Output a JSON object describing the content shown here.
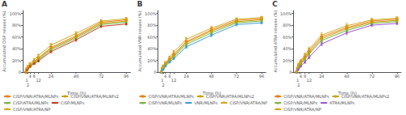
{
  "chart_data": [
    {
      "type": "line",
      "title": "A",
      "x_label": "Time (h)",
      "y_label": "Accumulated CISP release (%)",
      "x": [
        0,
        1,
        2,
        4,
        8,
        12,
        24,
        48,
        72,
        96
      ],
      "xlim": [
        -3,
        100
      ],
      "xticks": [
        0,
        1,
        2,
        4,
        8,
        12,
        24,
        48,
        72,
        96
      ],
      "ylim": [
        0,
        105
      ],
      "yticks": [
        0,
        {
          "value": 20,
          "label": "20%"
        },
        {
          "value": 40,
          "label": "40%"
        },
        {
          "value": 60,
          "label": "60%"
        },
        {
          "value": 80,
          "label": "80%"
        },
        {
          "value": 100,
          "label": "100%"
        }
      ],
      "grid": false,
      "legend": "bottom",
      "series": [
        {
          "name": "CISP/VNR/ATRA/MLNPs",
          "color": "#E8821A",
          "marker": "square",
          "values": [
            0,
            5,
            8,
            12,
            18,
            24,
            42,
            62,
            85,
            89
          ],
          "yerr": [
            0,
            1.0,
            1.2,
            1.5,
            2.0,
            2.2,
            2.8,
            3.0,
            2.5,
            2.0
          ]
        },
        {
          "name": "CISP/VNR/ATRA/MLNPs2",
          "color": "#C8A000",
          "marker": "circle",
          "values": [
            0,
            4.5,
            7.5,
            11,
            17,
            23,
            40,
            60,
            83,
            87
          ],
          "yerr": [
            0,
            0.9,
            1.1,
            1.4,
            1.8,
            2.0,
            2.5,
            2.8,
            2.3,
            1.8
          ]
        },
        {
          "name": "CISP/ATRA/MLNPs",
          "color": "#7DB343",
          "marker": "triangle",
          "values": [
            0,
            4,
            7,
            10,
            16,
            21,
            38,
            58,
            81,
            85
          ],
          "yerr": [
            0,
            0.8,
            1.0,
            1.3,
            1.6,
            1.8,
            2.3,
            2.6,
            2.2,
            1.7
          ]
        },
        {
          "name": "CISP/MLNPs",
          "color": "#C04020",
          "marker": "diamond",
          "values": [
            0,
            3.5,
            6.5,
            9.5,
            14.5,
            19,
            35,
            55,
            78,
            82
          ],
          "yerr": [
            0,
            0.7,
            0.9,
            1.2,
            1.5,
            1.7,
            2.2,
            2.5,
            2.0,
            1.6
          ]
        },
        {
          "name": "CISP/VNR/ATRA/NP",
          "color": "#D4A820",
          "marker": "triangle-down",
          "values": [
            0,
            6,
            9.5,
            14,
            21,
            28,
            46,
            66,
            87,
            91
          ],
          "yerr": [
            0,
            1.2,
            1.4,
            1.7,
            2.2,
            2.5,
            3.0,
            3.2,
            2.6,
            2.2
          ]
        }
      ]
    },
    {
      "type": "line",
      "title": "B",
      "x_label": "Time (h)",
      "y_label": "Accumulated VNR release (%)",
      "x": [
        0,
        1,
        2,
        4,
        8,
        12,
        24,
        48,
        72,
        96
      ],
      "xlim": [
        -3,
        100
      ],
      "xticks": [
        0,
        1,
        2,
        4,
        8,
        12,
        24,
        48,
        72,
        96
      ],
      "ylim": [
        0,
        105
      ],
      "yticks": [
        0,
        {
          "value": 20,
          "label": "20%"
        },
        {
          "value": 40,
          "label": "40%"
        },
        {
          "value": 60,
          "label": "60%"
        },
        {
          "value": 80,
          "label": "80%"
        },
        {
          "value": 100,
          "label": "100%"
        }
      ],
      "grid": false,
      "legend": "bottom",
      "series": [
        {
          "name": "CISP/VNR/ATRA/MLNPs",
          "color": "#E8821A",
          "marker": "square",
          "values": [
            0,
            5,
            9,
            14,
            22,
            30,
            52,
            72,
            88,
            91
          ],
          "yerr": [
            0,
            1.0,
            1.3,
            1.6,
            2.0,
            2.5,
            3.0,
            3.2,
            2.5,
            2.0
          ]
        },
        {
          "name": "CISP/VNR/ATRA/MLNPs2",
          "color": "#C8A000",
          "marker": "circle",
          "values": [
            0,
            4.5,
            8,
            13,
            21,
            28,
            50,
            70,
            86,
            89
          ],
          "yerr": [
            0,
            0.9,
            1.2,
            1.5,
            1.8,
            2.2,
            2.8,
            3.0,
            2.3,
            1.8
          ]
        },
        {
          "name": "CISP/VNR/MLNPs",
          "color": "#7DB343",
          "marker": "triangle",
          "values": [
            0,
            4,
            7,
            12,
            19,
            26,
            47,
            67,
            84,
            87
          ],
          "yerr": [
            0,
            0.8,
            1.1,
            1.4,
            1.7,
            2.0,
            2.6,
            2.8,
            2.2,
            1.7
          ]
        },
        {
          "name": "VNR/MLNPs",
          "color": "#3FA0D0",
          "marker": "diamond",
          "values": [
            0,
            3,
            6,
            10,
            17,
            23,
            43,
            63,
            81,
            84
          ],
          "yerr": [
            0,
            0.7,
            0.9,
            1.2,
            1.5,
            1.8,
            2.3,
            2.6,
            2.0,
            1.6
          ]
        },
        {
          "name": "CISP/VNR/ATRA/NP",
          "color": "#D4A820",
          "marker": "triangle-down",
          "values": [
            0,
            6.5,
            10.5,
            16,
            25,
            34,
            56,
            75,
            90,
            93
          ],
          "yerr": [
            0,
            1.2,
            1.5,
            1.8,
            2.3,
            2.8,
            3.2,
            3.5,
            2.7,
            2.2
          ]
        }
      ]
    },
    {
      "type": "line",
      "title": "C",
      "x_label": "Time (h)",
      "y_label": "Accumulated ATRA release (%)",
      "x": [
        0,
        1,
        2,
        4,
        8,
        12,
        24,
        48,
        72,
        96
      ],
      "xlim": [
        -3,
        100
      ],
      "xticks": [
        0,
        1,
        2,
        4,
        8,
        12,
        24,
        48,
        72,
        96
      ],
      "ylim": [
        0,
        105
      ],
      "yticks": [
        0,
        {
          "value": 20,
          "label": "20%"
        },
        {
          "value": 40,
          "label": "40%"
        },
        {
          "value": 60,
          "label": "60%"
        },
        {
          "value": 80,
          "label": "80%"
        },
        {
          "value": 100,
          "label": "100%"
        }
      ],
      "grid": false,
      "legend": "bottom",
      "series": [
        {
          "name": "CISP/VNR/ATRA/MLNPs",
          "color": "#E8821A",
          "marker": "square",
          "values": [
            0,
            6,
            11,
            17,
            26,
            36,
            60,
            76,
            87,
            90
          ],
          "yerr": [
            0,
            1.5,
            2.0,
            2.5,
            3.0,
            3.5,
            4.0,
            4.0,
            3.0,
            2.5
          ]
        },
        {
          "name": "CISP/VNR/ATRA/MLNPs2",
          "color": "#C8A000",
          "marker": "circle",
          "values": [
            0,
            5,
            10,
            15,
            24,
            33,
            57,
            74,
            85,
            88
          ],
          "yerr": [
            0,
            1.3,
            1.7,
            2.2,
            2.7,
            3.2,
            3.7,
            3.8,
            2.8,
            2.3
          ]
        },
        {
          "name": "CISP/VNR/MLNPs",
          "color": "#7DB343",
          "marker": "triangle",
          "values": [
            0,
            4.5,
            9,
            14,
            22,
            31,
            54,
            71,
            83,
            86
          ],
          "yerr": [
            0,
            1.1,
            1.6,
            2.0,
            2.5,
            3.0,
            3.5,
            3.6,
            2.7,
            2.2
          ]
        },
        {
          "name": "ATRA/MLNPs",
          "color": "#9B59D0",
          "marker": "diamond",
          "values": [
            0,
            3,
            6,
            10,
            17,
            25,
            48,
            67,
            80,
            83
          ],
          "yerr": [
            0,
            0.8,
            1.2,
            1.6,
            2.0,
            2.5,
            3.0,
            3.2,
            2.5,
            2.0
          ]
        },
        {
          "name": "CISP/VNR/ATRA/NP",
          "color": "#D4A820",
          "marker": "triangle-down",
          "values": [
            0,
            7,
            13,
            19,
            29,
            39,
            63,
            79,
            89,
            92
          ],
          "yerr": [
            0,
            1.7,
            2.2,
            2.7,
            3.3,
            3.8,
            4.2,
            4.5,
            3.2,
            2.7
          ]
        }
      ]
    }
  ]
}
